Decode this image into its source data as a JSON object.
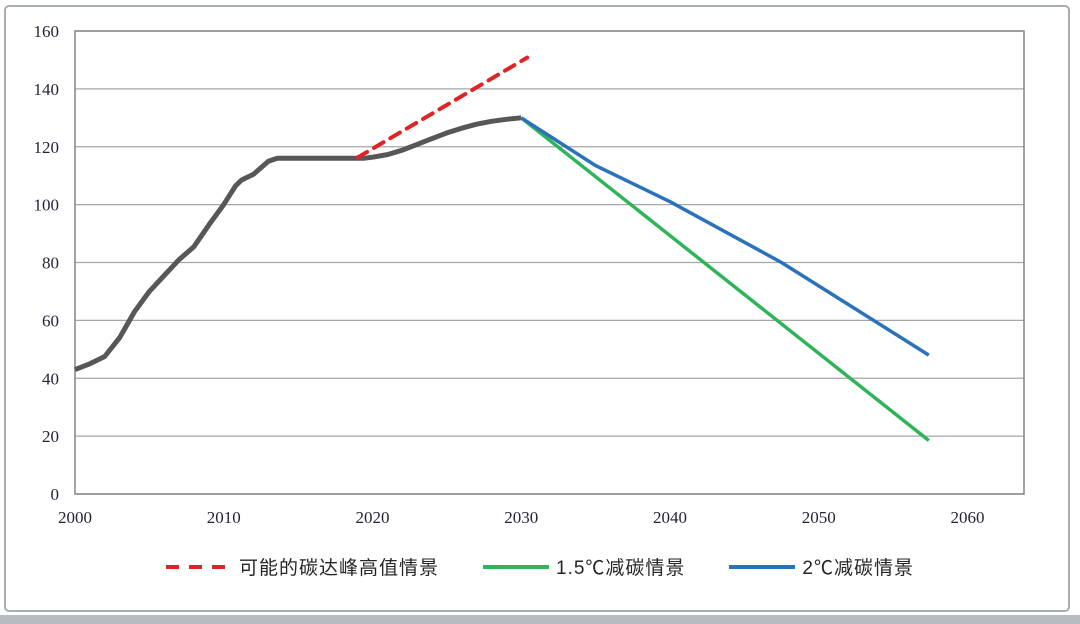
{
  "chart_data": {
    "type": "line",
    "title": "",
    "xlabel": "",
    "ylabel": "",
    "x_axis": {
      "min": 2000,
      "max": 2063.8,
      "ticks": [
        2000,
        2010,
        2020,
        2030,
        2040,
        2050,
        2060
      ]
    },
    "y_axis": {
      "min": 0,
      "max": 160,
      "ticks": [
        0,
        20,
        40,
        60,
        80,
        100,
        120,
        140,
        160
      ]
    },
    "grid": "horizontal",
    "legend_position": "bottom",
    "series": [
      {
        "name": "historical-emissions",
        "color": "#575757",
        "width": 5,
        "dash": "",
        "points": [
          [
            2000,
            43
          ],
          [
            2001,
            45
          ],
          [
            2002,
            47.5
          ],
          [
            2003,
            54
          ],
          [
            2004,
            63
          ],
          [
            2005,
            70
          ],
          [
            2006,
            75.5
          ],
          [
            2007,
            81
          ],
          [
            2008,
            85.5
          ],
          [
            2009,
            93
          ],
          [
            2010,
            100
          ],
          [
            2010.8,
            106.5
          ],
          [
            2011.2,
            108.5
          ],
          [
            2012,
            110.5
          ],
          [
            2013,
            115
          ],
          [
            2013.6,
            116
          ],
          [
            2019.4,
            116
          ],
          [
            2020,
            116.4
          ],
          [
            2021,
            117.3
          ],
          [
            2022,
            118.8
          ],
          [
            2023,
            120.8
          ],
          [
            2024,
            122.8
          ],
          [
            2025,
            124.8
          ],
          [
            2026,
            126.4
          ],
          [
            2027,
            127.8
          ],
          [
            2028,
            128.8
          ],
          [
            2029,
            129.5
          ],
          [
            2030,
            130
          ]
        ]
      },
      {
        "name": "possible-peak-high-scenario",
        "label": "可能的碳达峰高值情景",
        "color": "#e02424",
        "width": 4,
        "dash": "11 8",
        "points": [
          [
            2019,
            116.3
          ],
          [
            2030.4,
            150.8
          ]
        ]
      },
      {
        "name": "scenario-1p5C-reduction",
        "label": "1.5℃减碳情景",
        "color": "#2fb45a",
        "width": 3.5,
        "dash": "",
        "points": [
          [
            2030,
            130
          ],
          [
            2057.4,
            18.5
          ]
        ]
      },
      {
        "name": "scenario-2C-reduction",
        "label": "2℃减碳情景",
        "color": "#2a72ba",
        "width": 3.5,
        "dash": "",
        "points": [
          [
            2030,
            130
          ],
          [
            2035,
            113.5
          ],
          [
            2040,
            101
          ],
          [
            2047.5,
            80
          ],
          [
            2057.4,
            48
          ]
        ]
      }
    ],
    "legend": [
      {
        "label": "可能的碳达峰高值情景",
        "color": "#e02424",
        "dash": true
      },
      {
        "label": "1.5℃减碳情景",
        "color": "#2fb45a",
        "dash": false
      },
      {
        "label": "2℃减碳情景",
        "color": "#2a72ba",
        "dash": false
      }
    ],
    "style": {
      "grid_color": "#a6a6a6",
      "axis_color": "#8c8c8c",
      "tick_label_color": "#23233a",
      "legend_text_color": "#262626",
      "card_border_color": "#a9aeb4",
      "bottom_strip_color": "#b9bcbf"
    }
  }
}
